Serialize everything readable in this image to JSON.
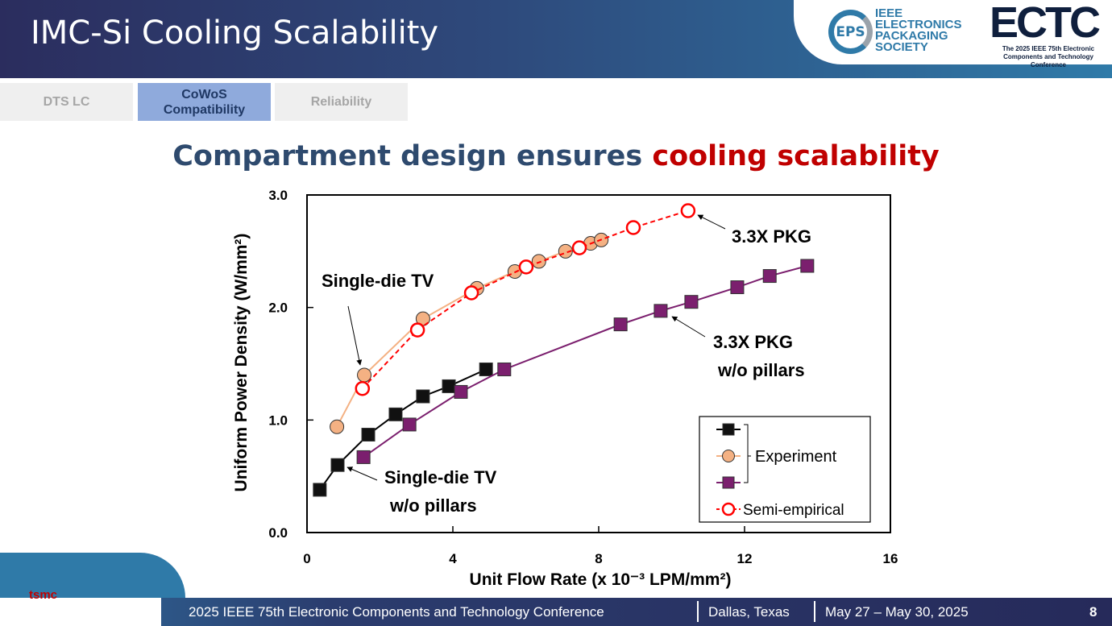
{
  "header": {
    "title": "IMC-Si Cooling Scalability",
    "eps_logo": {
      "mark": "EPS",
      "lines": [
        "IEEE",
        "ELECTRONICS",
        "PACKAGING",
        "SOCIETY"
      ]
    },
    "ectc_logo": {
      "mark": "ECTC",
      "subtitle": "The 2025 IEEE 75th Electronic Components and Technology Conference"
    }
  },
  "tabs": [
    {
      "label": "DTS LC",
      "active": false
    },
    {
      "label": "CoWoS Compatibility",
      "active": true
    },
    {
      "label": "Reliability",
      "active": false
    }
  ],
  "headline": {
    "part1": "Compartment design ensures ",
    "part2": "cooling scalability",
    "highlight_color": "#c00000"
  },
  "chart_data": {
    "type": "line",
    "xlabel": "Unit Flow Rate (x 10⁻³ LPM/mm²)",
    "ylabel": "Uniform Power Density (W/mm²)",
    "xlim": [
      0,
      16
    ],
    "ylim": [
      0,
      3.0
    ],
    "xticks": [
      "0",
      "4",
      "8",
      "12",
      "16"
    ],
    "yticks": [
      "0.0",
      "1.0",
      "2.0",
      "3.0"
    ],
    "grid": false,
    "legend_position": "bottom-right",
    "legend": {
      "group_label": "Experiment",
      "semi_label": "Semi-empirical"
    },
    "series": [
      {
        "id": "single_die_no_pillars",
        "group": "Experiment",
        "color": "#000000",
        "marker": "square",
        "style": "solid",
        "x": [
          0.35,
          0.84,
          1.68,
          2.43,
          3.18,
          3.89,
          4.91
        ],
        "y": [
          0.38,
          0.6,
          0.87,
          1.05,
          1.21,
          1.3,
          1.45
        ]
      },
      {
        "id": "single_die",
        "group": "Experiment",
        "color": "#f4b183",
        "marker": "circle",
        "style": "solid",
        "x": [
          0.82,
          1.57,
          3.18,
          4.66,
          5.7,
          6.36,
          7.09,
          7.78,
          8.07
        ],
        "y": [
          0.94,
          1.4,
          1.9,
          2.17,
          2.32,
          2.41,
          2.5,
          2.57,
          2.6
        ]
      },
      {
        "id": "pkg_no_pillars",
        "group": "Experiment",
        "color": "#7b1f6e",
        "marker": "square",
        "style": "solid",
        "x": [
          1.55,
          2.81,
          4.22,
          5.41,
          8.6,
          9.7,
          10.54,
          11.8,
          12.69,
          13.72
        ],
        "y": [
          0.67,
          0.96,
          1.25,
          1.45,
          1.85,
          1.97,
          2.05,
          2.18,
          2.28,
          2.37
        ]
      },
      {
        "id": "semi_empirical",
        "name": "Semi-empirical",
        "color": "#ff0000",
        "marker": "open-circle",
        "style": "dashed",
        "x": [
          1.52,
          3.03,
          4.51,
          6.01,
          7.47,
          8.95,
          10.45
        ],
        "y": [
          1.28,
          1.8,
          2.13,
          2.36,
          2.53,
          2.71,
          2.86
        ]
      }
    ],
    "annotations": [
      {
        "text": [
          "Single-die TV"
        ]
      },
      {
        "text": [
          "3.3X PKG"
        ]
      },
      {
        "text": [
          "3.3X PKG",
          "w/o pillars"
        ]
      },
      {
        "text": [
          "Single-die TV",
          "w/o pillars"
        ]
      }
    ]
  },
  "footer": {
    "logo": "tsmc",
    "conference": "2025 IEEE 75th  Electronic Components and Technology Conference",
    "location": "Dallas, Texas",
    "dates": "May 27 – May 30, 2025",
    "page": "8"
  }
}
